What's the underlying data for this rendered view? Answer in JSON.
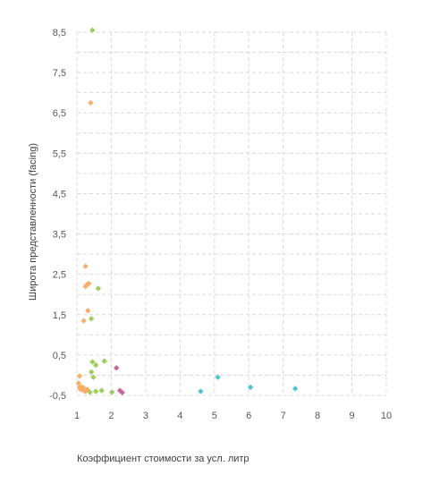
{
  "chart_data": {
    "type": "scatter",
    "title": "",
    "xlabel": "Коэффициент стоимости за усл. литр",
    "ylabel": "Широта представленности  (facing)",
    "xlim": [
      1,
      10
    ],
    "ylim": [
      -0.5,
      8.5
    ],
    "x_ticks": [
      "1",
      "2",
      "3",
      "4",
      "5",
      "6",
      "7",
      "8",
      "9",
      "10"
    ],
    "y_ticks": [
      "-0,5",
      "0,5",
      "1,5",
      "2,5",
      "3,5",
      "4,5",
      "5,5",
      "6,5",
      "7,5",
      "8,5"
    ],
    "grid": true,
    "legend": "none",
    "series": [
      {
        "color": "#f4b06b",
        "points": [
          [
            1.05,
            -0.2
          ],
          [
            1.08,
            -0.3
          ],
          [
            1.1,
            -0.35
          ],
          [
            1.12,
            -0.3
          ],
          [
            1.15,
            -0.35
          ],
          [
            1.18,
            -0.3
          ],
          [
            1.2,
            -0.38
          ],
          [
            1.08,
            -0.02
          ],
          [
            1.25,
            -0.4
          ],
          [
            1.3,
            -0.35
          ],
          [
            1.2,
            1.35
          ],
          [
            1.32,
            1.6
          ],
          [
            1.25,
            2.2
          ],
          [
            1.3,
            2.25
          ],
          [
            1.35,
            2.27
          ],
          [
            1.25,
            2.7
          ],
          [
            1.4,
            6.75
          ]
        ]
      },
      {
        "color": "#9fcc5f",
        "points": [
          [
            1.45,
            8.55
          ],
          [
            1.42,
            1.4
          ],
          [
            1.62,
            2.15
          ],
          [
            1.45,
            0.33
          ],
          [
            1.55,
            0.25
          ],
          [
            1.8,
            0.35
          ],
          [
            1.42,
            0.08
          ],
          [
            1.48,
            -0.05
          ],
          [
            1.55,
            -0.4
          ],
          [
            1.72,
            -0.38
          ],
          [
            2.02,
            -0.42
          ],
          [
            1.38,
            -0.42
          ]
        ]
      },
      {
        "color": "#c9679c",
        "points": [
          [
            2.15,
            0.18
          ],
          [
            2.25,
            -0.38
          ],
          [
            2.32,
            -0.43
          ]
        ]
      },
      {
        "color": "#57c3cf",
        "points": [
          [
            4.6,
            -0.4
          ],
          [
            5.1,
            -0.05
          ],
          [
            6.05,
            -0.3
          ],
          [
            7.35,
            -0.33
          ]
        ]
      }
    ]
  }
}
